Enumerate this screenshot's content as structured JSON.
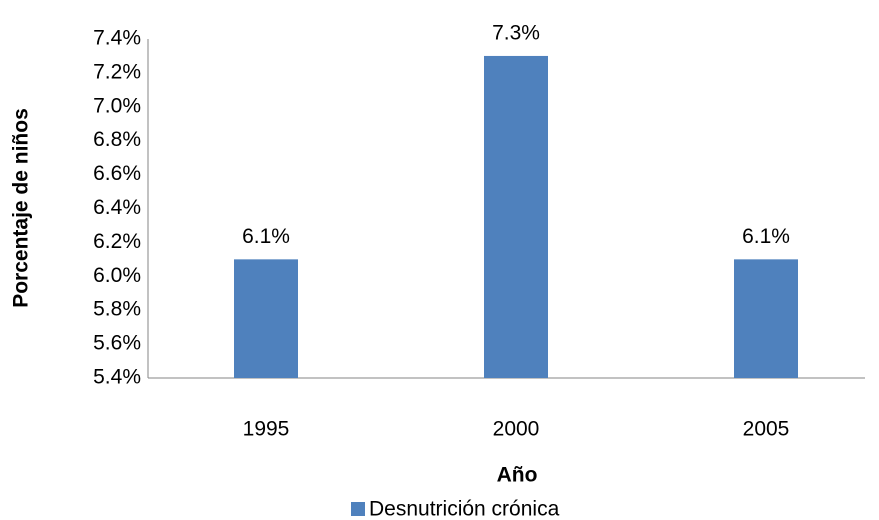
{
  "chart_data": {
    "type": "bar",
    "categories": [
      "1995",
      "2000",
      "2005"
    ],
    "values": [
      6.1,
      7.3,
      6.1
    ],
    "value_labels": [
      "6.1%",
      "7.3%",
      "6.1%"
    ],
    "color": "#4f81bd",
    "ylim": [
      5.4,
      7.4
    ],
    "yticks": [
      {
        "value": 5.4,
        "label": "5.4%"
      },
      {
        "value": 5.6,
        "label": "5.6%"
      },
      {
        "value": 5.8,
        "label": "5.8%"
      },
      {
        "value": 6.0,
        "label": "6.0%"
      },
      {
        "value": 6.2,
        "label": "6.2%"
      },
      {
        "value": 6.4,
        "label": "6.4%"
      },
      {
        "value": 6.6,
        "label": "6.6%"
      },
      {
        "value": 6.8,
        "label": "6.8%"
      },
      {
        "value": 7.0,
        "label": "7.0%"
      },
      {
        "value": 7.2,
        "label": "7.2%"
      },
      {
        "value": 7.4,
        "label": "7.4%"
      }
    ],
    "x_label": "Año",
    "y_label": "Porcentaje de niños",
    "legend": "Desnutrición crónica",
    "grid": false
  }
}
